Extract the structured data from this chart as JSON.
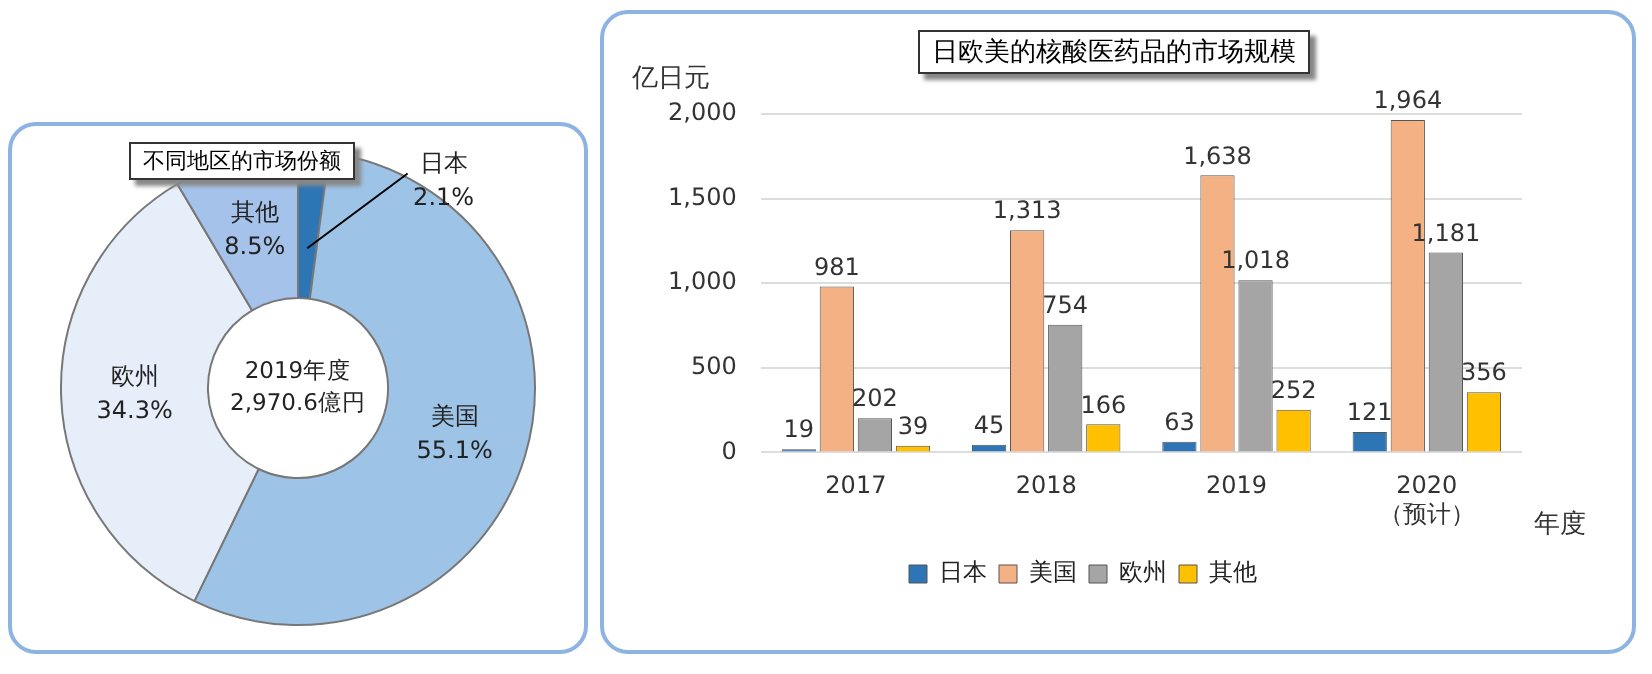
{
  "chart_data": [
    {
      "type": "donut",
      "title": "不同地区的市场份额",
      "categories": [
        "日本",
        "美国",
        "欧州",
        "其他"
      ],
      "values": [
        2.1,
        55.1,
        34.3,
        8.5
      ],
      "colors": [
        "#2e75b6",
        "#9dc3e6",
        "#e6eef9",
        "#a4c2ea"
      ],
      "value_labels": [
        "2.1%",
        "55.1%",
        "34.3%",
        "8.5%"
      ],
      "annotations": [
        "2019年度\n2,970.6億円"
      ],
      "legend": false
    },
    {
      "type": "bar",
      "title": "日欧美的核酸医药品的市场规模",
      "ylabel": "亿日元",
      "xlabel": "年度",
      "categories": [
        "2017",
        "2018",
        "2019",
        "2020\n（预计）"
      ],
      "series": [
        {
          "name": "日本",
          "color": "#2e75b6",
          "values": [
            19,
            45,
            63,
            121
          ],
          "value_labels": [
            "19",
            "45",
            "63",
            "121"
          ]
        },
        {
          "name": "美国",
          "color": "#f4b183",
          "values": [
            981,
            1313,
            1638,
            1964
          ],
          "value_labels": [
            "981",
            "1,313",
            "1,638",
            "1,964"
          ]
        },
        {
          "name": "欧州",
          "color": "#a5a5a5",
          "values": [
            202,
            754,
            1018,
            1181
          ],
          "value_labels": [
            "202",
            "754",
            "1,018",
            "1,181"
          ]
        },
        {
          "name": "其他",
          "color": "#ffc000",
          "values": [
            39,
            166,
            252,
            356
          ],
          "value_labels": [
            "39",
            "166",
            "252",
            "356"
          ]
        }
      ],
      "ylim": [
        0,
        2000
      ],
      "yticks": [
        0,
        {
          "value": 500,
          "label": "500"
        },
        {
          "value": 1000,
          "label": "1,000"
        },
        {
          "value": 1500,
          "label": "1,500"
        },
        {
          "value": 2000,
          "label": "2,000"
        }
      ],
      "grid": "y",
      "legend": "bottom"
    }
  ]
}
